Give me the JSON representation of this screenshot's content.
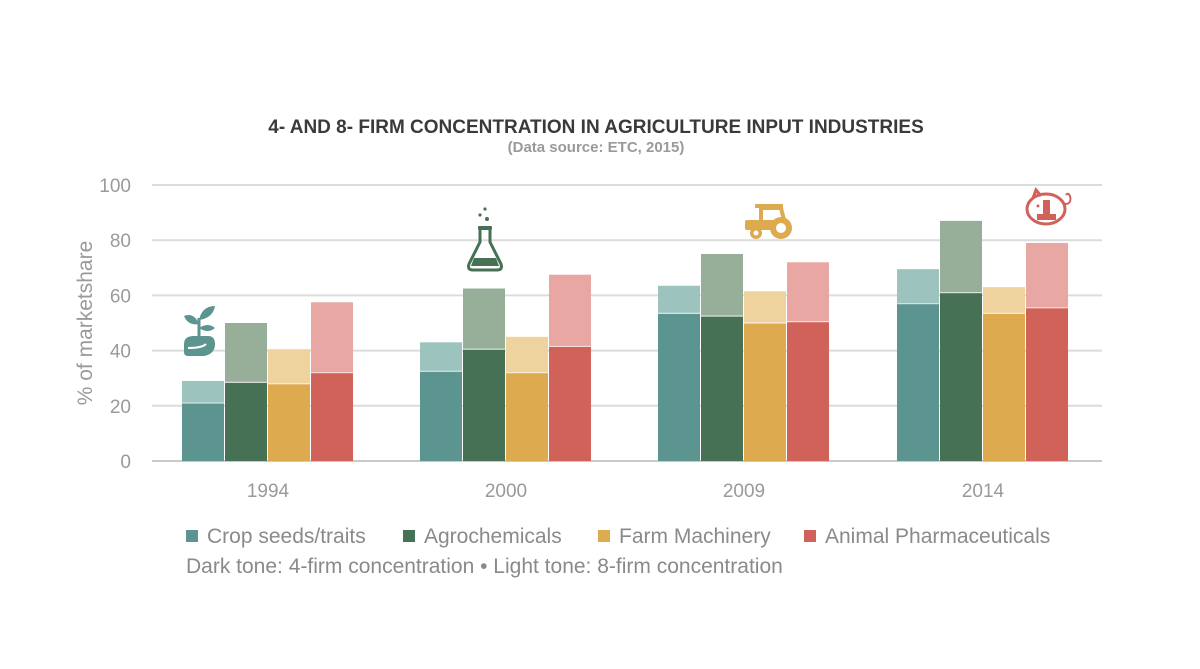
{
  "chart_data": {
    "type": "bar",
    "title": "4- AND 8- FIRM CONCENTRATION IN AGRICULTURE INPUT INDUSTRIES",
    "subtitle": "(Data source: ETC, 2015)",
    "xlabel": "",
    "ylabel": "% of marketshare",
    "ylim": [
      0,
      100
    ],
    "yticks": [
      0,
      20,
      40,
      60,
      80,
      100
    ],
    "grid": true,
    "categories": [
      "1994",
      "2000",
      "2009",
      "2014"
    ],
    "series": [
      {
        "name": "Crop seeds/traits",
        "dark_color": "#5c9490",
        "light_color": "#9dc3bf",
        "four_firm": [
          21,
          32.5,
          53.5,
          57
        ],
        "eight_firm": [
          29,
          43,
          63.5,
          69.5
        ]
      },
      {
        "name": "Agrochemicals",
        "dark_color": "#477154",
        "light_color": "#97af99",
        "four_firm": [
          28.5,
          40.5,
          52.5,
          61
        ],
        "eight_firm": [
          50,
          62.5,
          75,
          87
        ]
      },
      {
        "name": "Farm Machinery",
        "dark_color": "#deaa50",
        "light_color": "#eed39f",
        "four_firm": [
          28,
          32,
          50,
          53.5
        ],
        "eight_firm": [
          40.5,
          45,
          61.5,
          63
        ]
      },
      {
        "name": "Animal Pharmaceuticals",
        "dark_color": "#d0625a",
        "light_color": "#e8a7a2",
        "four_firm": [
          32,
          41.5,
          50.5,
          55.5
        ],
        "eight_firm": [
          57.5,
          67.5,
          72,
          79
        ]
      }
    ],
    "legend_note": "Dark tone: 4-firm concentration • Light tone: 8-firm concentration",
    "icons": [
      "seedling-icon",
      "flask-icon",
      "tractor-icon",
      "piggy-bank-icon"
    ]
  }
}
